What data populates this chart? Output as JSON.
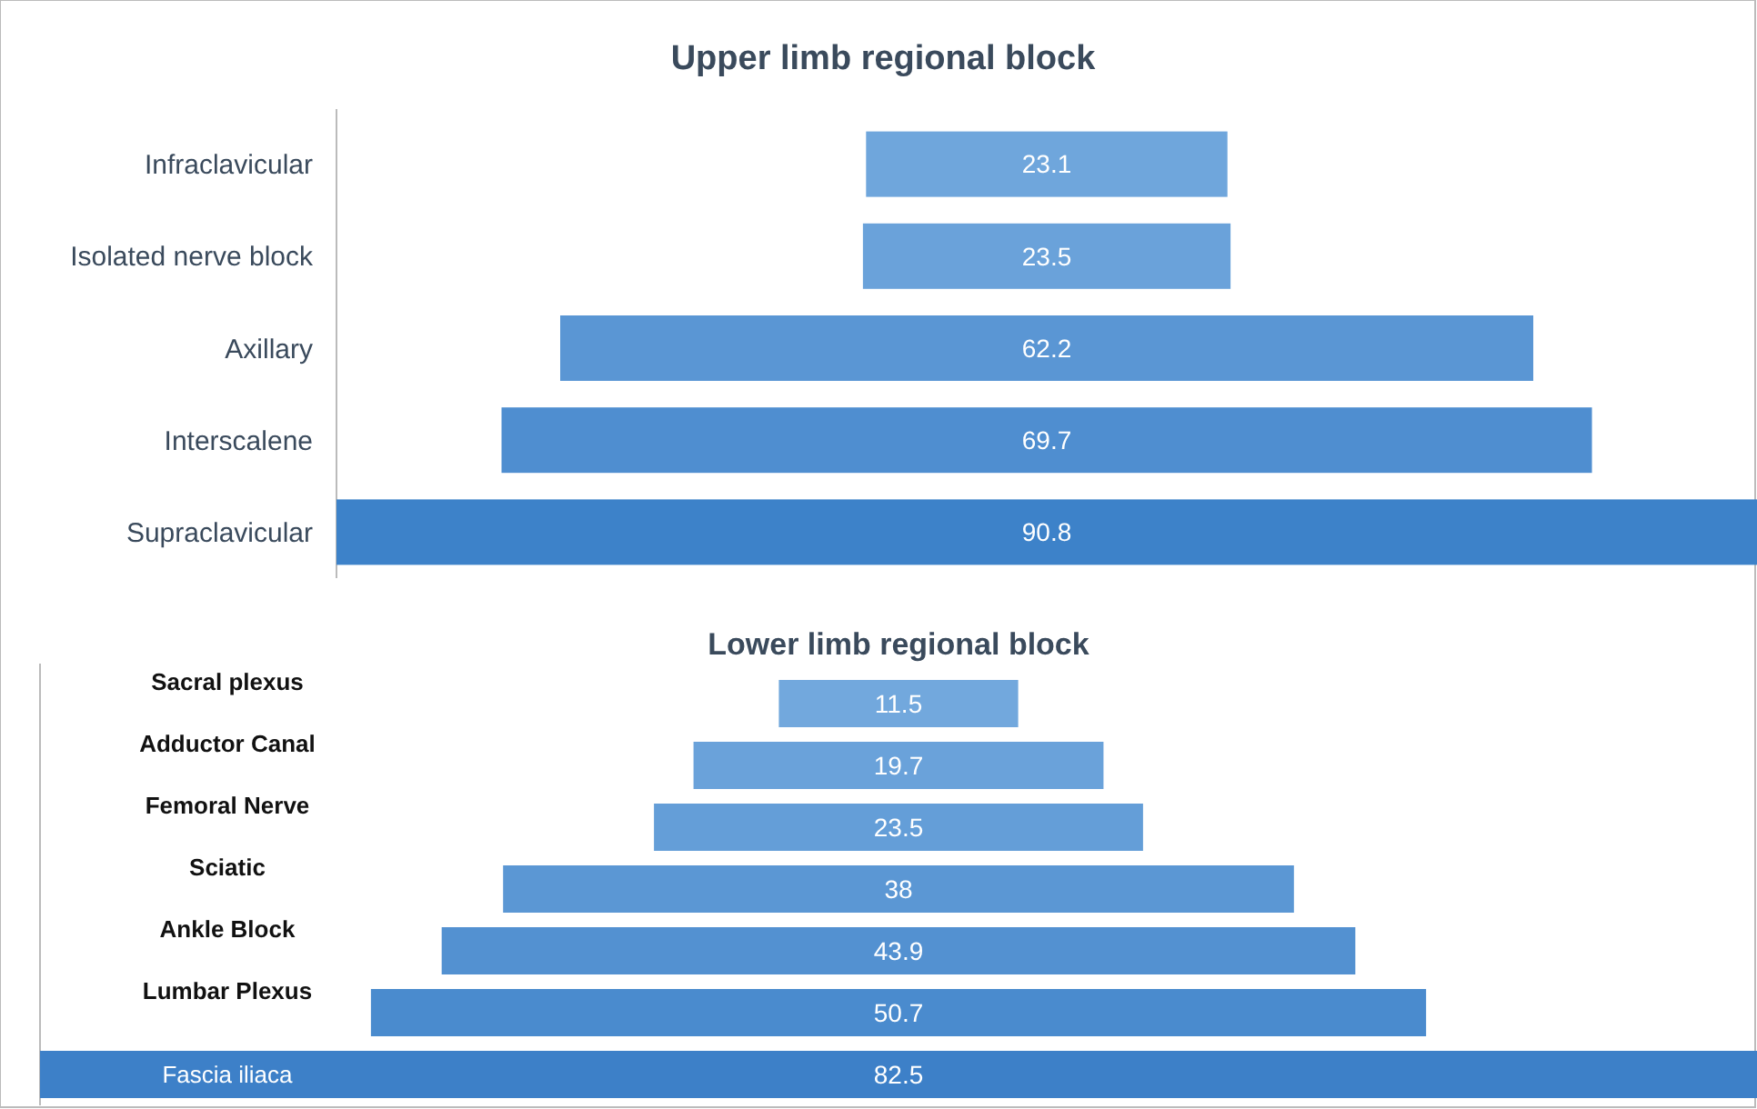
{
  "chart_data": [
    {
      "type": "other",
      "title": "Upper limb regional block",
      "categories": [
        "Infraclavicular",
        "Isolated nerve block",
        "Axillary",
        "Interscalene",
        "Supraclavicular"
      ],
      "values": [
        23.1,
        23.5,
        62.2,
        69.7,
        90.8
      ],
      "colors": [
        "#6fa6dc",
        "#6aa2da",
        "#5a96d4",
        "#4f8ed0",
        "#3d82c9"
      ],
      "data_labels": true
    },
    {
      "type": "other",
      "title": "Lower limb regional block",
      "categories": [
        "Sacral plexus",
        "Adductor Canal",
        "Femoral Nerve",
        "Sciatic",
        "Ankle Block",
        "Lumbar Plexus",
        "Fascia iliaca"
      ],
      "values": [
        11.5,
        19.7,
        23.5,
        38,
        43.9,
        50.7,
        82.5
      ],
      "colors": [
        "#72a8dd",
        "#6aa2da",
        "#649ed8",
        "#5b97d4",
        "#5391d1",
        "#4a8bce",
        "#3d80c8"
      ],
      "data_labels": true
    }
  ]
}
